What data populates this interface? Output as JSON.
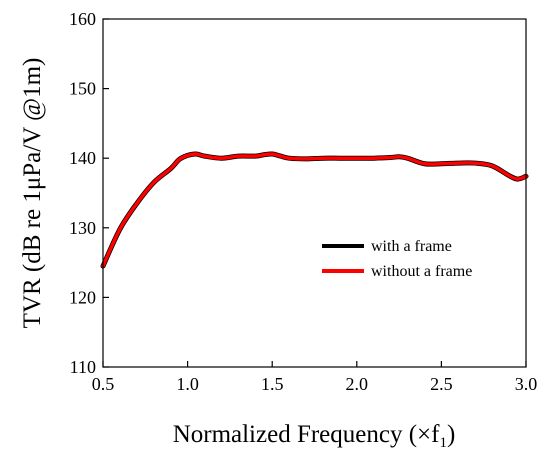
{
  "chart_data": {
    "type": "line",
    "title": "",
    "xlabel": "Normalized Frequency (×f",
    "xlabel_sub": "1",
    "xlabel_close": ")",
    "ylabel": "TVR (dB re 1μPa/V @1m)",
    "xlim": [
      0.5,
      3.0
    ],
    "ylim": [
      110,
      160
    ],
    "xticks": [
      "0.5",
      "1.0",
      "1.5",
      "2.0",
      "2.5",
      "3.0"
    ],
    "yticks": [
      "110",
      "120",
      "130",
      "140",
      "150",
      "160"
    ],
    "grid": false,
    "legend_position": "center-right",
    "x": [
      0.5,
      0.6,
      0.7,
      0.8,
      0.9,
      0.95,
      1.0,
      1.05,
      1.1,
      1.2,
      1.3,
      1.4,
      1.45,
      1.5,
      1.55,
      1.6,
      1.7,
      1.8,
      1.9,
      2.0,
      2.1,
      2.2,
      2.25,
      2.3,
      2.4,
      2.5,
      2.6,
      2.7,
      2.8,
      2.9,
      2.95,
      3.0
    ],
    "series": [
      {
        "name": "with a frame",
        "color": "#000000",
        "values": [
          124.5,
          129.8,
          133.5,
          136.5,
          138.5,
          139.8,
          140.4,
          140.6,
          140.3,
          140.0,
          140.3,
          140.3,
          140.5,
          140.6,
          140.3,
          140.0,
          139.9,
          140.0,
          140.0,
          140.0,
          140.0,
          140.1,
          140.2,
          140.0,
          139.2,
          139.2,
          139.3,
          139.3,
          138.9,
          137.5,
          137.0,
          137.4
        ]
      },
      {
        "name": "without a frame",
        "color": "#ff0000",
        "values": [
          124.5,
          129.8,
          133.5,
          136.5,
          138.5,
          139.8,
          140.4,
          140.6,
          140.3,
          140.0,
          140.3,
          140.3,
          140.5,
          140.6,
          140.3,
          140.0,
          139.9,
          140.0,
          140.0,
          140.0,
          140.0,
          140.1,
          140.2,
          140.0,
          139.2,
          139.2,
          139.3,
          139.3,
          138.9,
          137.5,
          137.0,
          137.4
        ]
      }
    ]
  }
}
